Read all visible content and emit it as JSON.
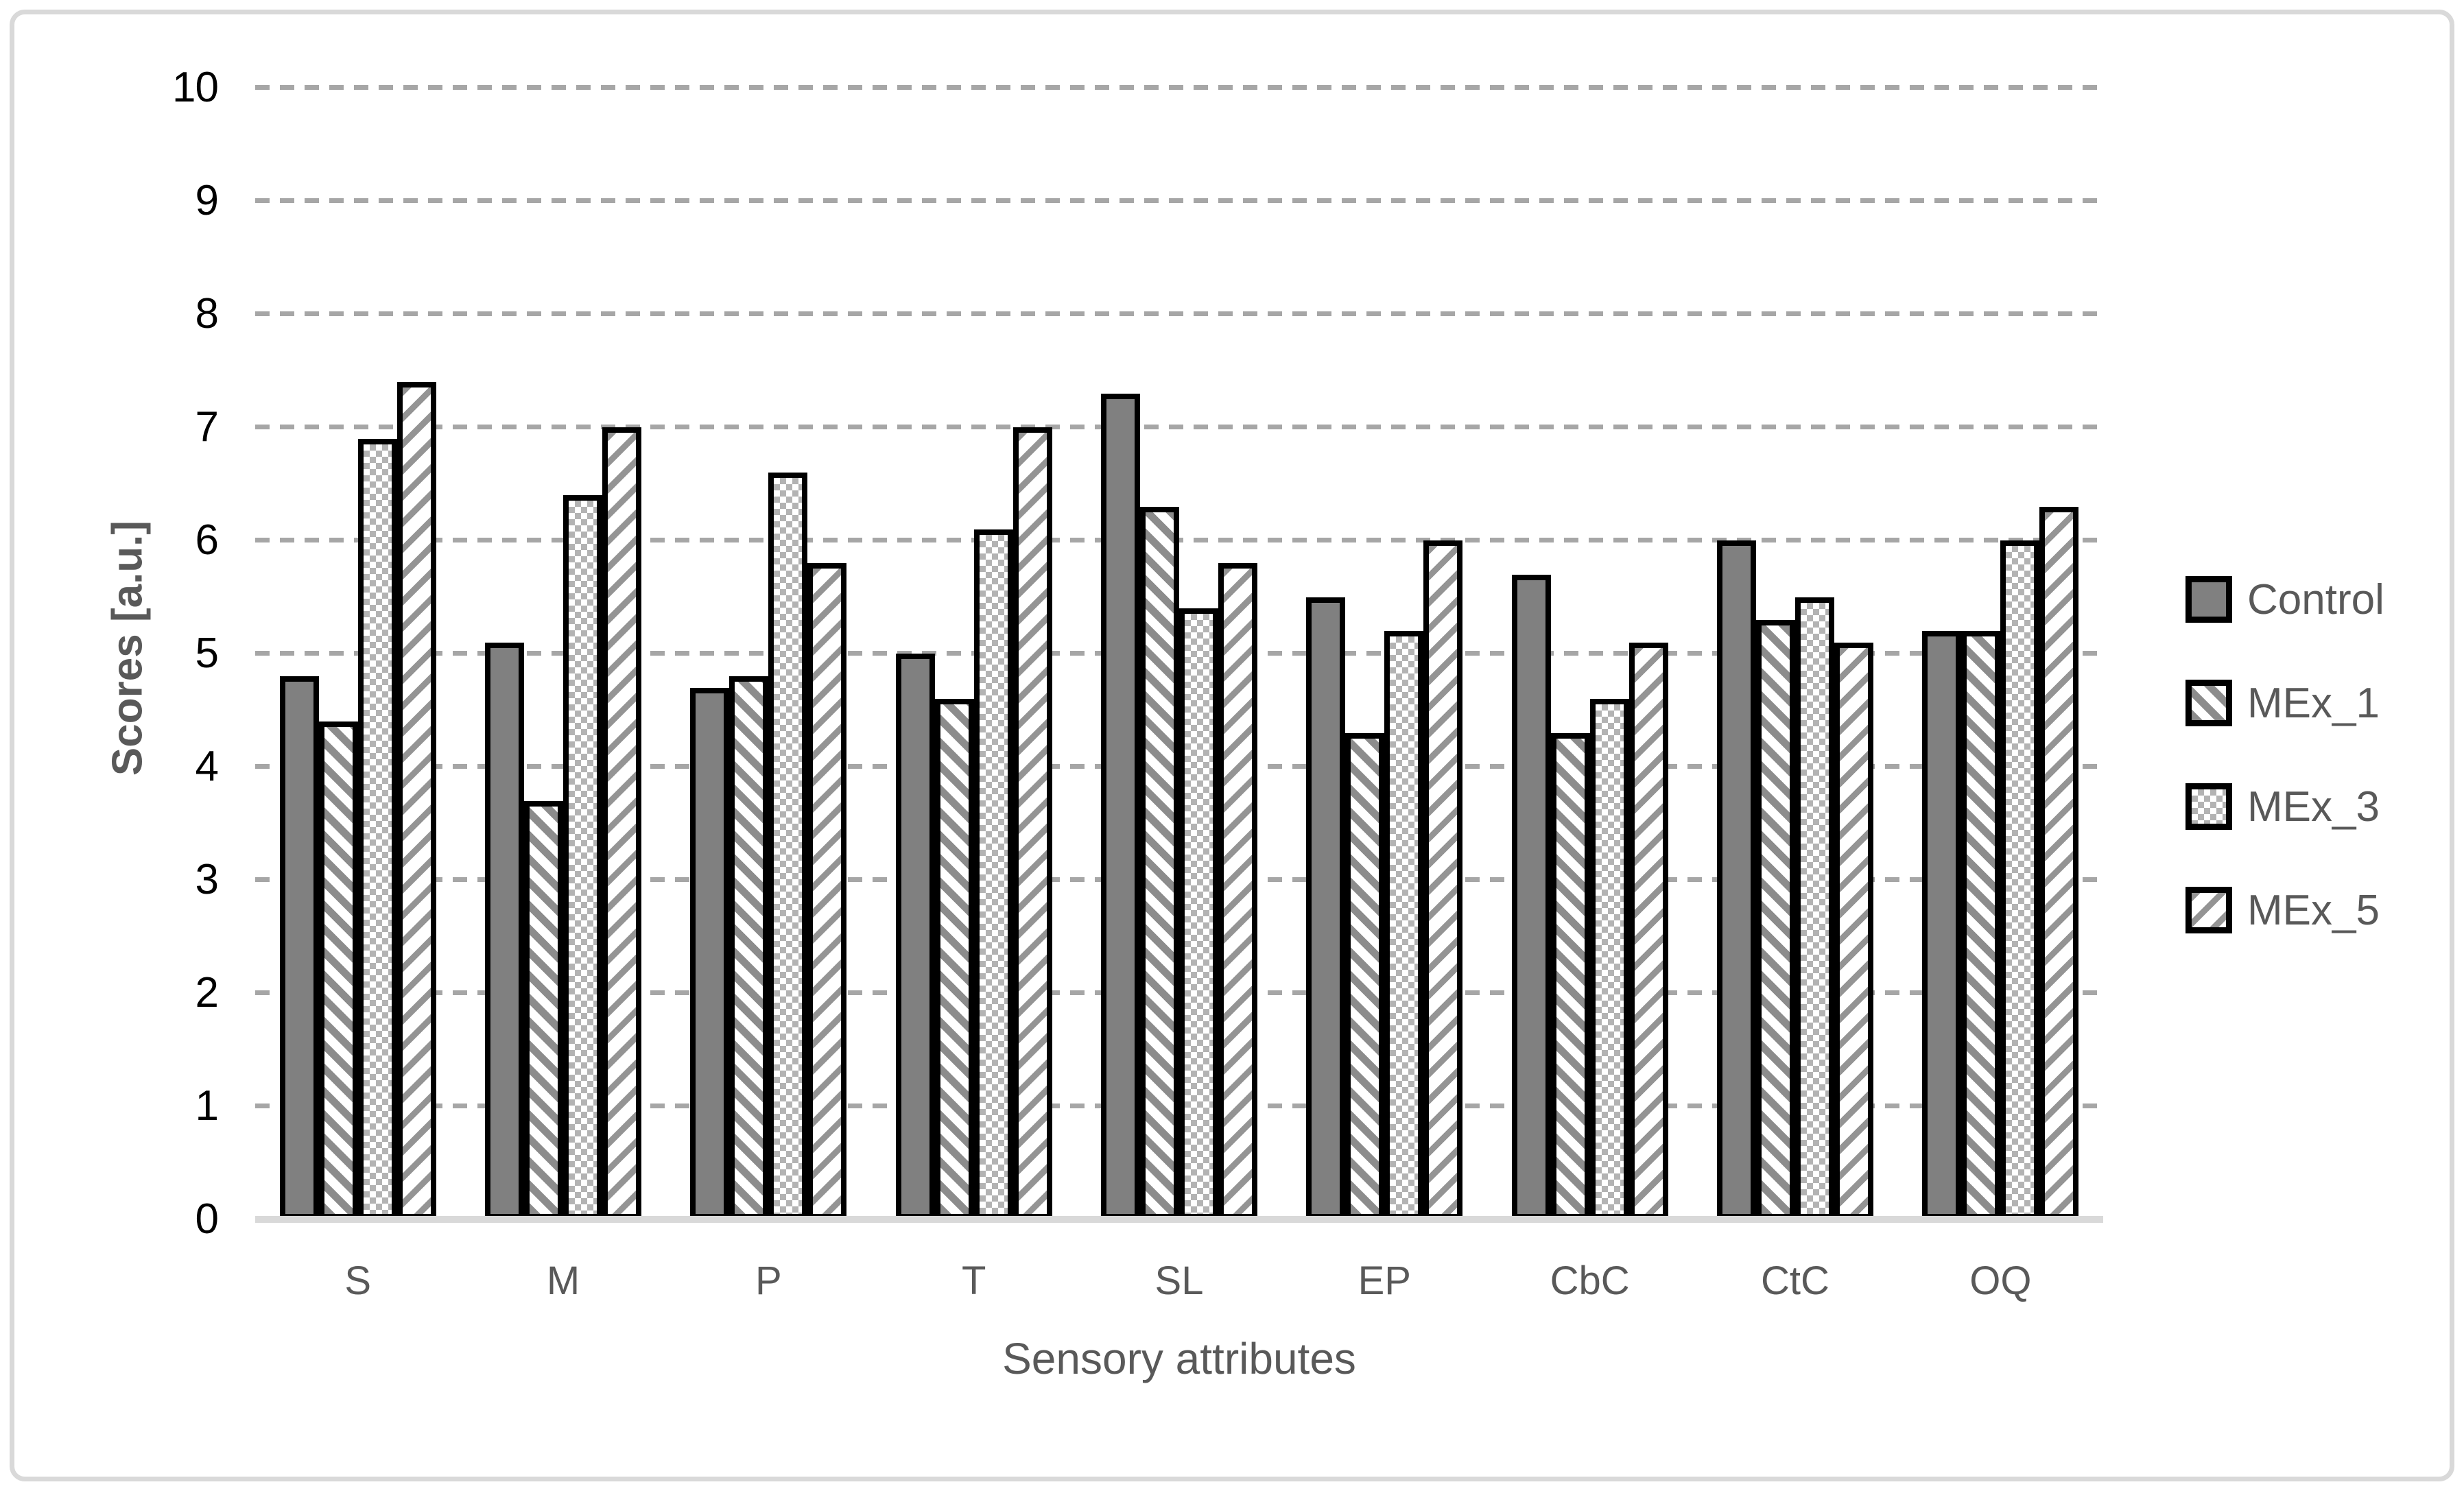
{
  "figure_title": "",
  "chart_data": {
    "type": "bar",
    "title": "",
    "xlabel": "Sensory attributes",
    "ylabel": "Scores [a.u.]",
    "categories": [
      "S",
      "M",
      "P",
      "T",
      "SL",
      "EP",
      "CbC",
      "CtC",
      "OQ"
    ],
    "series": [
      {
        "name": "Control",
        "pattern": "solid",
        "values": [
          4.8,
          5.1,
          4.7,
          5.0,
          7.3,
          5.5,
          5.7,
          6.0,
          5.2
        ]
      },
      {
        "name": "MEx_1",
        "pattern": "diag-down",
        "values": [
          4.4,
          3.7,
          4.8,
          4.6,
          6.3,
          4.3,
          4.3,
          5.3,
          5.2
        ]
      },
      {
        "name": "MEx_3",
        "pattern": "checker",
        "values": [
          6.9,
          6.4,
          6.6,
          6.1,
          5.4,
          5.2,
          4.6,
          5.5,
          6.0
        ]
      },
      {
        "name": "MEx_5",
        "pattern": "diag-up",
        "values": [
          7.4,
          7.0,
          5.8,
          7.0,
          5.8,
          6.0,
          5.1,
          5.1,
          6.3
        ]
      }
    ],
    "ylim": [
      0,
      10
    ],
    "ytick_interval": 1,
    "y_tick_labels": [
      "0",
      "1",
      "2",
      "3",
      "4",
      "5",
      "6",
      "7",
      "8",
      "9",
      "10"
    ],
    "grid": "horizontal-dashed",
    "legend_position": "right",
    "legend_entries": [
      "Control",
      "MEx_1",
      "MEx_3",
      "MEx_5"
    ]
  },
  "colors": {
    "bar_outline": "#000000",
    "control_fill": "#808080",
    "hatch_diag_down": "#8c8c8c",
    "hatch_checker": "#b3b3b3",
    "hatch_diag_up": "#949494",
    "gridline": "#a6a6a6",
    "axis_line": "#d9d9d9",
    "frame_border": "#d9d9d9",
    "tick_text": "#000000",
    "label_text": "#595959"
  }
}
